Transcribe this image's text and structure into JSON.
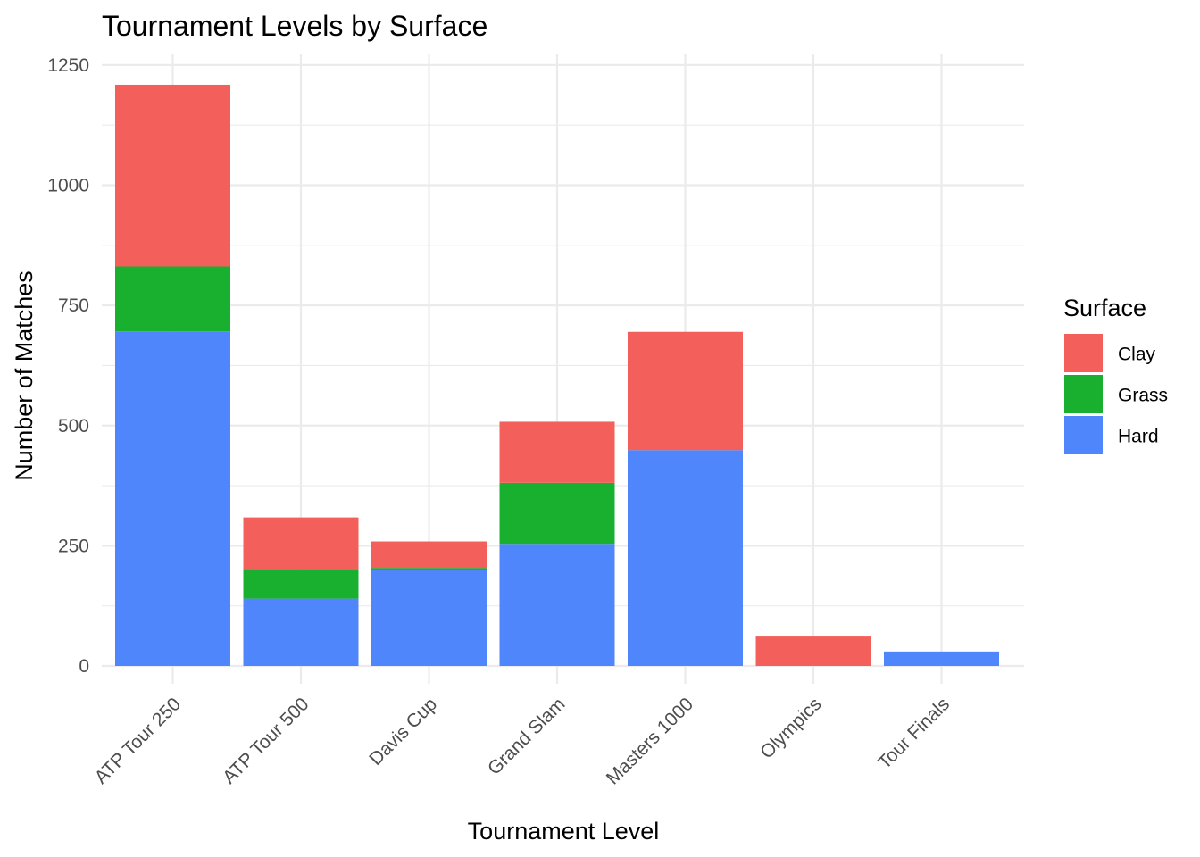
{
  "chart_data": {
    "type": "bar",
    "stacked": true,
    "title": "Tournament Levels by Surface",
    "xlabel": "Tournament Level",
    "ylabel": "Number of Matches",
    "ylim": [
      0,
      1250
    ],
    "yticks": [
      0,
      250,
      500,
      750,
      1000,
      1250
    ],
    "grid": true,
    "legend": {
      "title": "Surface",
      "placement": "right"
    },
    "categories": [
      "ATP Tour 250",
      "ATP Tour 500",
      "Davis Cup",
      "Grand Slam",
      "Masters 1000",
      "Olympics",
      "Tour Finals"
    ],
    "series": [
      {
        "name": "Hard",
        "color": "#4f86fc",
        "values": [
          696,
          140,
          200,
          254,
          449,
          0,
          30
        ]
      },
      {
        "name": "Grass",
        "color": "#1ab02f",
        "values": [
          135,
          62,
          4,
          127,
          0,
          0,
          0
        ]
      },
      {
        "name": "Clay",
        "color": "#f3605b",
        "values": [
          378,
          107,
          55,
          127,
          246,
          63,
          0
        ]
      }
    ],
    "legend_order": [
      "Clay",
      "Grass",
      "Hard"
    ]
  }
}
